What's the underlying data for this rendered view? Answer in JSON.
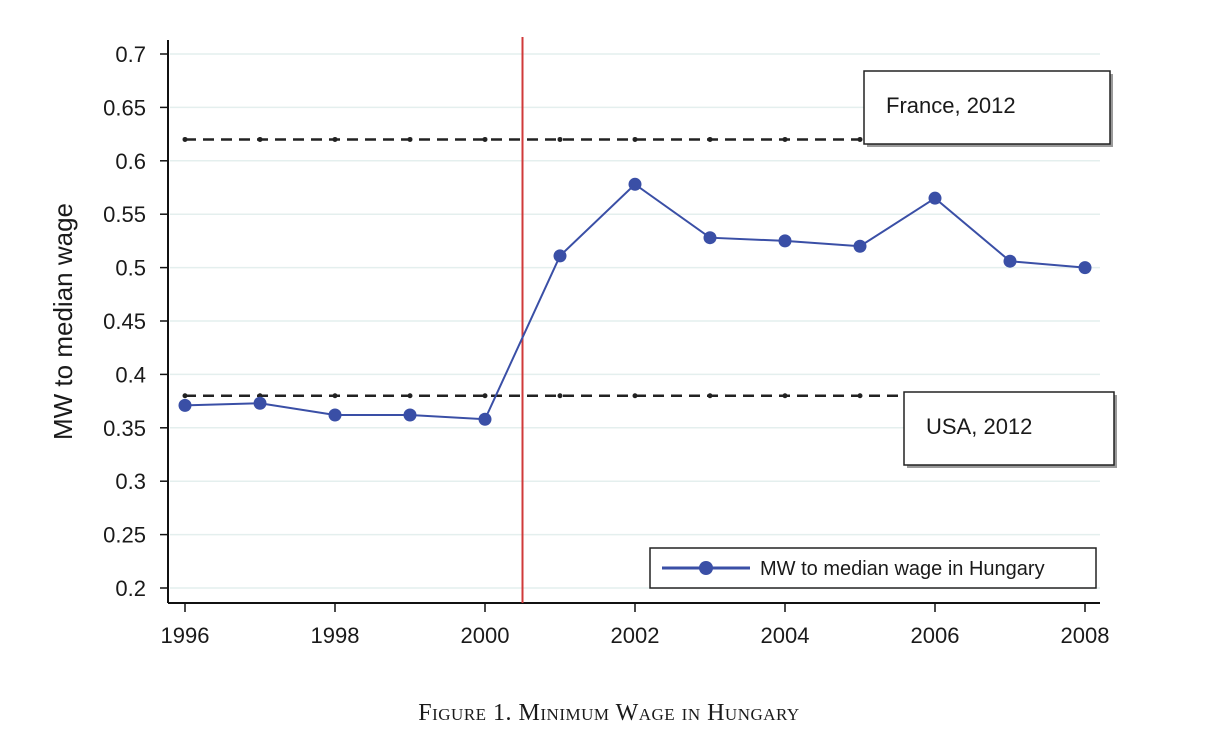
{
  "chart_data": {
    "type": "line",
    "title": "Figure 1. Minimum Wage in Hungary",
    "xlabel": "",
    "ylabel": "MW to median wage",
    "xlim": [
      1996,
      2008
    ],
    "ylim": [
      0.2,
      0.7
    ],
    "x_ticks": [
      1996,
      1998,
      2000,
      2002,
      2004,
      2006,
      2008
    ],
    "x_tick_labels": [
      "1996",
      "1998",
      "2000",
      "2002",
      "2004",
      "2006",
      "2008"
    ],
    "y_ticks": [
      0.2,
      0.25,
      0.3,
      0.35,
      0.4,
      0.45,
      0.5,
      0.55,
      0.6,
      0.65,
      0.7
    ],
    "y_tick_labels": [
      "0.2",
      "0.25",
      "0.3",
      "0.35",
      "0.4",
      "0.45",
      "0.5",
      "0.55",
      "0.6",
      "0.65",
      "0.7"
    ],
    "series": [
      {
        "name": "MW to median wage in Hungary",
        "color": "#3a4fa6",
        "x": [
          1996,
          1997,
          1998,
          1999,
          2000,
          2001,
          2002,
          2003,
          2004,
          2005,
          2006,
          2007,
          2008
        ],
        "values": [
          0.371,
          0.373,
          0.362,
          0.362,
          0.358,
          0.511,
          0.578,
          0.528,
          0.525,
          0.52,
          0.565,
          0.506,
          0.5
        ]
      }
    ],
    "reference_lines": [
      {
        "name": "France, 2012",
        "value": 0.62,
        "style": "dashed",
        "color": "#222222"
      },
      {
        "name": "USA, 2012",
        "value": 0.38,
        "style": "dashed",
        "color": "#222222"
      }
    ],
    "vertical_line": {
      "x": 2000.5,
      "color": "#d03a3a"
    },
    "legend": {
      "position": "bottom-right",
      "label": "MW to median wage in Hungary"
    },
    "annotations": [
      {
        "text": "France, 2012"
      },
      {
        "text": "USA, 2012"
      }
    ],
    "grid": true
  },
  "caption": "Figure 1. Minimum Wage in Hungary"
}
